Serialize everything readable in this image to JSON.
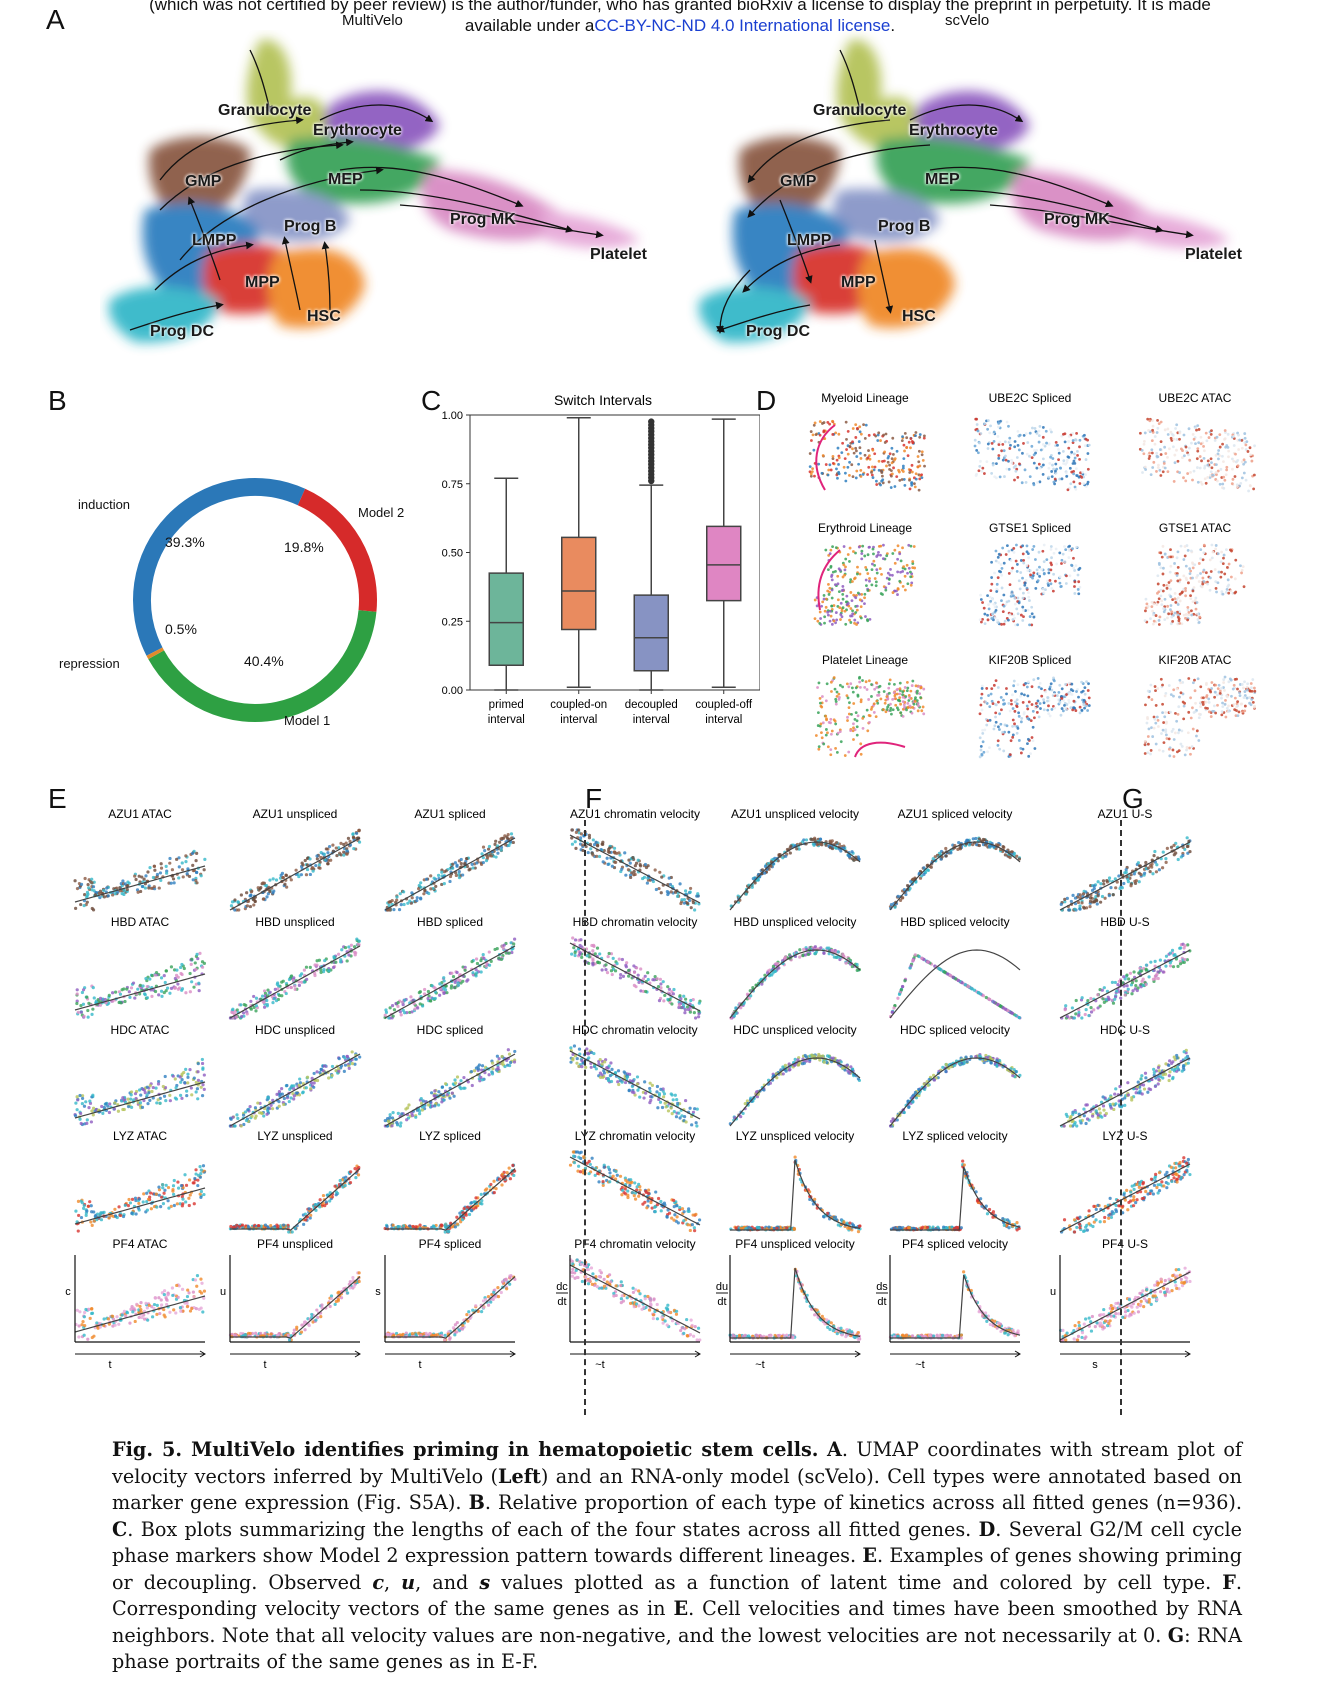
{
  "header": {
    "line1": "(which was not certified by peer review) is the author/funder, who has granted bioRxiv a license to display the preprint in perpetuity. It is made",
    "line2_prefix": "available under a",
    "line2_link": "CC-BY-NC-ND 4.0 International license",
    "line2_suffix": "."
  },
  "panels": {
    "A": "A",
    "B": "B",
    "C": "C",
    "D": "D",
    "E": "E",
    "F": "F",
    "G": "G"
  },
  "panel_a": {
    "left_title": "MultiVelo",
    "right_title": "scVelo",
    "cell_types": [
      "Granulocyte",
      "Erythrocyte",
      "GMP",
      "MEP",
      "Prog MK",
      "Prog B",
      "LMPP",
      "Platelet",
      "MPP",
      "HSC",
      "Prog DC"
    ],
    "colors": {
      "granulocyte": "#b5c35a",
      "erythrocyte": "#8e5cc0",
      "gmp": "#8b5a44",
      "mep": "#3aa35a",
      "progmk": "#d98cc4",
      "progb": "#8896c8",
      "lmpp": "#2f7fc0",
      "platelet": "#e6a8d8",
      "mpp": "#d8352f",
      "hsc": "#f08a2b",
      "progdc": "#35b8c9"
    }
  },
  "panel_b": {
    "labels": {
      "induction": "induction",
      "model2": "Model 2",
      "repression": "repression",
      "model1": "Model 1"
    },
    "percents": {
      "induction": "39.3%",
      "model2": "19.8%",
      "repression": "0.5%",
      "model1": "40.4%"
    },
    "colors": {
      "induction": "#2b78b8",
      "model2": "#d62a2a",
      "repression": "#e08a2c",
      "model1": "#2ea043"
    }
  },
  "chart_data": {
    "type": "box",
    "title": "Switch Intervals",
    "categories": [
      "primed interval",
      "coupled-on interval",
      "decoupled interval",
      "coupled-off interval"
    ],
    "cat_line1": [
      "primed",
      "coupled-on",
      "decoupled",
      "coupled-off"
    ],
    "cat_line2": [
      "interval",
      "interval",
      "interval",
      "interval"
    ],
    "ylim": [
      0,
      1.0
    ],
    "yticks": [
      "0.00",
      "0.25",
      "0.50",
      "0.75",
      "1.00"
    ],
    "boxes": [
      {
        "min": 0.0,
        "q1": 0.09,
        "median": 0.245,
        "q3": 0.425,
        "max": 0.77,
        "color": "#6db59a"
      },
      {
        "min": 0.01,
        "q1": 0.22,
        "median": 0.36,
        "q3": 0.555,
        "max": 0.99,
        "color": "#e98b5f"
      },
      {
        "min": 0.0,
        "q1": 0.07,
        "median": 0.19,
        "q3": 0.345,
        "max": 0.745,
        "color": "#8793c3",
        "outliers_from": 0.76,
        "outliers_to": 0.98
      },
      {
        "min": 0.01,
        "q1": 0.325,
        "median": 0.455,
        "q3": 0.595,
        "max": 0.985,
        "color": "#df86c3"
      }
    ]
  },
  "panel_d": {
    "titles": [
      "Myeloid Lineage",
      "UBE2C Spliced",
      "UBE2C ATAC",
      "Erythroid Lineage",
      "GTSE1 Spliced",
      "GTSE1 ATAC",
      "Platelet Lineage",
      "KIF20B Spliced",
      "KIF20B ATAC"
    ]
  },
  "panel_e": {
    "titles": [
      "AZU1 ATAC",
      "AZU1 unspliced",
      "AZU1 spliced",
      "HBD ATAC",
      "HBD unspliced",
      "HBD spliced",
      "HDC ATAC",
      "HDC unspliced",
      "HDC spliced",
      "LYZ ATAC",
      "LYZ unspliced",
      "LYZ spliced",
      "PF4 ATAC",
      "PF4 unspliced",
      "PF4 spliced"
    ],
    "axis_y": [
      "c",
      "u",
      "s"
    ],
    "axis_x": "t"
  },
  "panel_f": {
    "titles": [
      "AZU1 chromatin velocity",
      "AZU1 unspliced velocity",
      "AZU1 spliced velocity",
      "HBD chromatin velocity",
      "HBD unspliced velocity",
      "HBD spliced velocity",
      "HDC chromatin velocity",
      "HDC unspliced velocity",
      "HDC spliced velocity",
      "LYZ chromatin velocity",
      "LYZ unspliced velocity",
      "LYZ spliced velocity",
      "PF4 chromatin velocity",
      "PF4 unspliced velocity",
      "PF4 spliced velocity"
    ],
    "axis_y": [
      [
        "dc",
        "dt"
      ],
      [
        "du",
        "dt"
      ],
      [
        "ds",
        "dt"
      ]
    ],
    "axis_x": "~t"
  },
  "panel_g": {
    "titles": [
      "AZU1 U-S",
      "HBD U-S",
      "HDC U-S",
      "LYZ U-S",
      "PF4 U-S"
    ],
    "axis_y": "u",
    "axis_x": "s"
  },
  "caption": {
    "fig": "Fig. 5. MultiVelo identifies priming in hematopoietic stem cells.",
    "A": "A",
    "A_text1": ". UMAP coordinates with stream plot of velocity vectors inferred by MultiVelo (",
    "left": "Left",
    "A_text2": ") and an RNA-only model (scVelo). Cell types were annotated based on marker gene expression (Fig. S5A).",
    "B": "B",
    "B_text": ". Relative proportion of each type of kinetics across all fitted genes (n=936).",
    "C": "C",
    "C_text": ". Box plots summarizing the lengths of each of the four states across all fitted genes.",
    "D": "D",
    "D_text": ". Several G2/M cell cycle phase markers show Model 2 expression pattern towards different lineages.",
    "E": "E",
    "E_text1": ". Examples of genes showing priming or decoupling. Observed ",
    "c": "c",
    "comma1": ", ",
    "u": "u",
    "and": ", and ",
    "s": "s",
    "E_text2": " values plotted as a function of latent time and colored by cell type.",
    "F": "F",
    "F_text1": ". Corresponding velocity vectors of the same genes as in ",
    "E2": "E",
    "F_text2": ". Cell velocities and times have been smoothed by RNA neighbors. Note that all velocity values are non-negative, and the lowest velocities are not necessarily at 0.",
    "G": "G",
    "G_text": ": RNA phase portraits of the same genes as in E-F."
  }
}
